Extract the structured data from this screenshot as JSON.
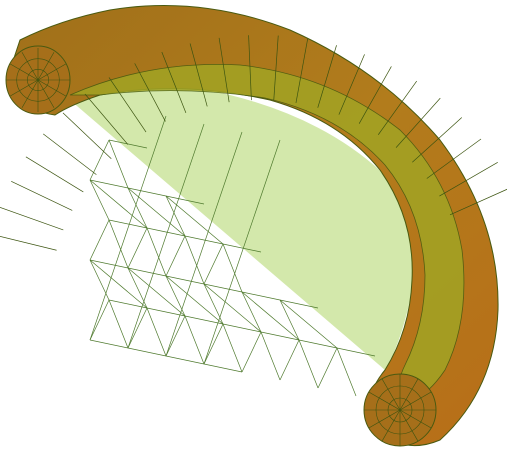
{
  "scene": {
    "subject": "half-torus-mesh",
    "colors": {
      "background": "#ffffff",
      "fill_face": "#d2e6a8",
      "fill_face_edge": "#4a7a2a",
      "tube_outer": "#b8741a",
      "tube_mid": "#c08a1c",
      "tube_inner": "#a8a01e",
      "tube_dark": "#556a14",
      "mesh_line": "#3c5a10"
    }
  }
}
